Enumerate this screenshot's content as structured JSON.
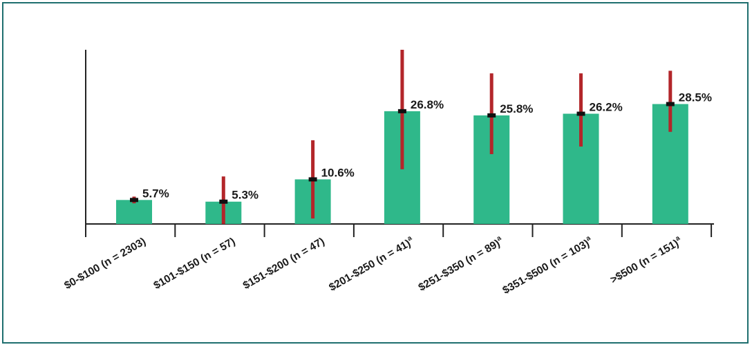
{
  "chart_data": {
    "type": "bar",
    "categories": [
      {
        "label": "$0-$100 (n = 2303)",
        "superscript": ""
      },
      {
        "label": "$101-$150 (n = 57)",
        "superscript": ""
      },
      {
        "label": "$151-$200 (n = 47)",
        "superscript": ""
      },
      {
        "label": "$201-$250 (n = 41)",
        "superscript": "a"
      },
      {
        "label": "$251-$350 (n = 89)",
        "superscript": "a"
      },
      {
        "label": "$351-$500 (n = 103)",
        "superscript": "a"
      },
      {
        "label": ">$500 (n = 151)",
        "superscript": "a"
      }
    ],
    "values": [
      5.7,
      5.3,
      10.6,
      26.8,
      25.8,
      26.2,
      28.5
    ],
    "value_labels": [
      "5.7%",
      "5.3%",
      "10.6%",
      "26.8%",
      "25.8%",
      "26.2%",
      "28.5%"
    ],
    "error_bars": [
      {
        "low": 4.9,
        "high": 6.5
      },
      {
        "low": 0.0,
        "high": 11.3
      },
      {
        "low": 1.3,
        "high": 19.9
      },
      {
        "low": 13.0,
        "high": 41.4
      },
      {
        "low": 16.6,
        "high": 35.8
      },
      {
        "low": 18.4,
        "high": 35.8
      },
      {
        "low": 21.9,
        "high": 36.4
      }
    ],
    "ylim": [
      0,
      41.4
    ],
    "title": "",
    "xlabel": "",
    "ylabel": "",
    "grid": false,
    "colors": {
      "bar": "#2fb88a",
      "error_bar": "#b3262a",
      "marker": "#111111",
      "axis": "#222222",
      "frame": "#1e6e6e"
    }
  }
}
